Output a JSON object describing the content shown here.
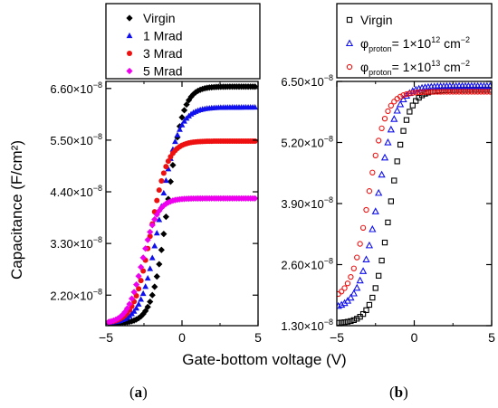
{
  "figure": {
    "ylabel": "Capacitance (F/cm²)",
    "xlabel": "Gate-bottom voltage (V)",
    "caption_a_open": "(",
    "caption_a_letter": "a",
    "caption_a_close": ")",
    "caption_b_open": "(",
    "caption_b_letter": "b",
    "caption_b_close": ")"
  },
  "chart_data": [
    {
      "type": "scatter",
      "panel": "a",
      "xlim": [
        -5,
        5
      ],
      "ylim": [
        1.55e-08,
        6.75e-08
      ],
      "xticks": [
        -5,
        0,
        5
      ],
      "xtick_labels": [
        "−5",
        "0",
        "5"
      ],
      "yticks": [
        2.2e-08,
        3.3e-08,
        4.4e-08,
        5.5e-08,
        6.6e-08
      ],
      "ytick_labels": [
        "2.20×10⁻⁸",
        "3.30×10⁻⁸",
        "4.40×10⁻⁸",
        "5.50×10⁻⁸",
        "6.60×10⁻⁸"
      ],
      "legend_position": "outside-top",
      "grid": false,
      "series": [
        {
          "name": "Virgin",
          "color": "#000000",
          "marker": "diamond",
          "x0": -4.8,
          "dx": 0.15,
          "count": 65,
          "ymin": 1.6e-08,
          "ymax": 6.64e-08,
          "vmid": -0.95,
          "width": 0.5
        },
        {
          "name": "1 Mrad",
          "color": "#1010ee",
          "marker": "triangle",
          "x0": -4.8,
          "dx": 0.15,
          "count": 65,
          "ymin": 1.6e-08,
          "ymax": 6.2e-08,
          "vmid": -1.45,
          "width": 0.6
        },
        {
          "name": "3 Mrad",
          "color": "#ee1010",
          "marker": "circle",
          "x0": -4.8,
          "dx": 0.15,
          "count": 65,
          "ymin": 1.6e-08,
          "ymax": 5.48e-08,
          "vmid": -2.05,
          "width": 0.55
        },
        {
          "name": "5 Mrad",
          "color": "#ee00ee",
          "marker": "diamond",
          "x0": -4.8,
          "dx": 0.15,
          "count": 65,
          "ymin": 1.6e-08,
          "ymax": 4.26e-08,
          "vmid": -2.6,
          "width": 0.5
        }
      ]
    },
    {
      "type": "scatter",
      "panel": "b",
      "xlim": [
        -5,
        5
      ],
      "ylim": [
        1.3e-08,
        6.5e-08
      ],
      "xticks": [
        -5,
        0,
        5
      ],
      "xtick_labels": [
        "−5",
        "0",
        "5"
      ],
      "yticks": [
        1.3e-08,
        2.6e-08,
        3.9e-08,
        5.2e-08,
        6.5e-08
      ],
      "ytick_labels": [
        "1.30×10⁻⁸",
        "2.60×10⁻⁸",
        "3.90×10⁻⁸",
        "5.20×10⁻⁸",
        "6.50×10⁻⁸"
      ],
      "legend_position": "inside-top",
      "grid": false,
      "series": [
        {
          "name": "Virgin",
          "color": "#000000",
          "marker": "open-square",
          "x0": -4.9,
          "dx": 0.2,
          "count": 50,
          "ymin": 1.35e-08,
          "ymax": 6.32e-08,
          "vmid": -1.55,
          "width": 0.55
        },
        {
          "name": "φproton= 1×10¹² cm⁻²",
          "color": "#1010ee",
          "marker": "open-triangle",
          "x0": -4.9,
          "dx": 0.2,
          "count": 50,
          "ymin": 1.65e-08,
          "ymax": 6.4e-08,
          "vmid": -2.35,
          "width": 0.6
        },
        {
          "name": "φproton= 1×10¹³ cm⁻²",
          "color": "#ee1010",
          "marker": "open-circle",
          "x0": -4.9,
          "dx": 0.2,
          "count": 50,
          "ymin": 1.85e-08,
          "ymax": 6.28e-08,
          "vmid": -2.95,
          "width": 0.55
        }
      ]
    }
  ]
}
